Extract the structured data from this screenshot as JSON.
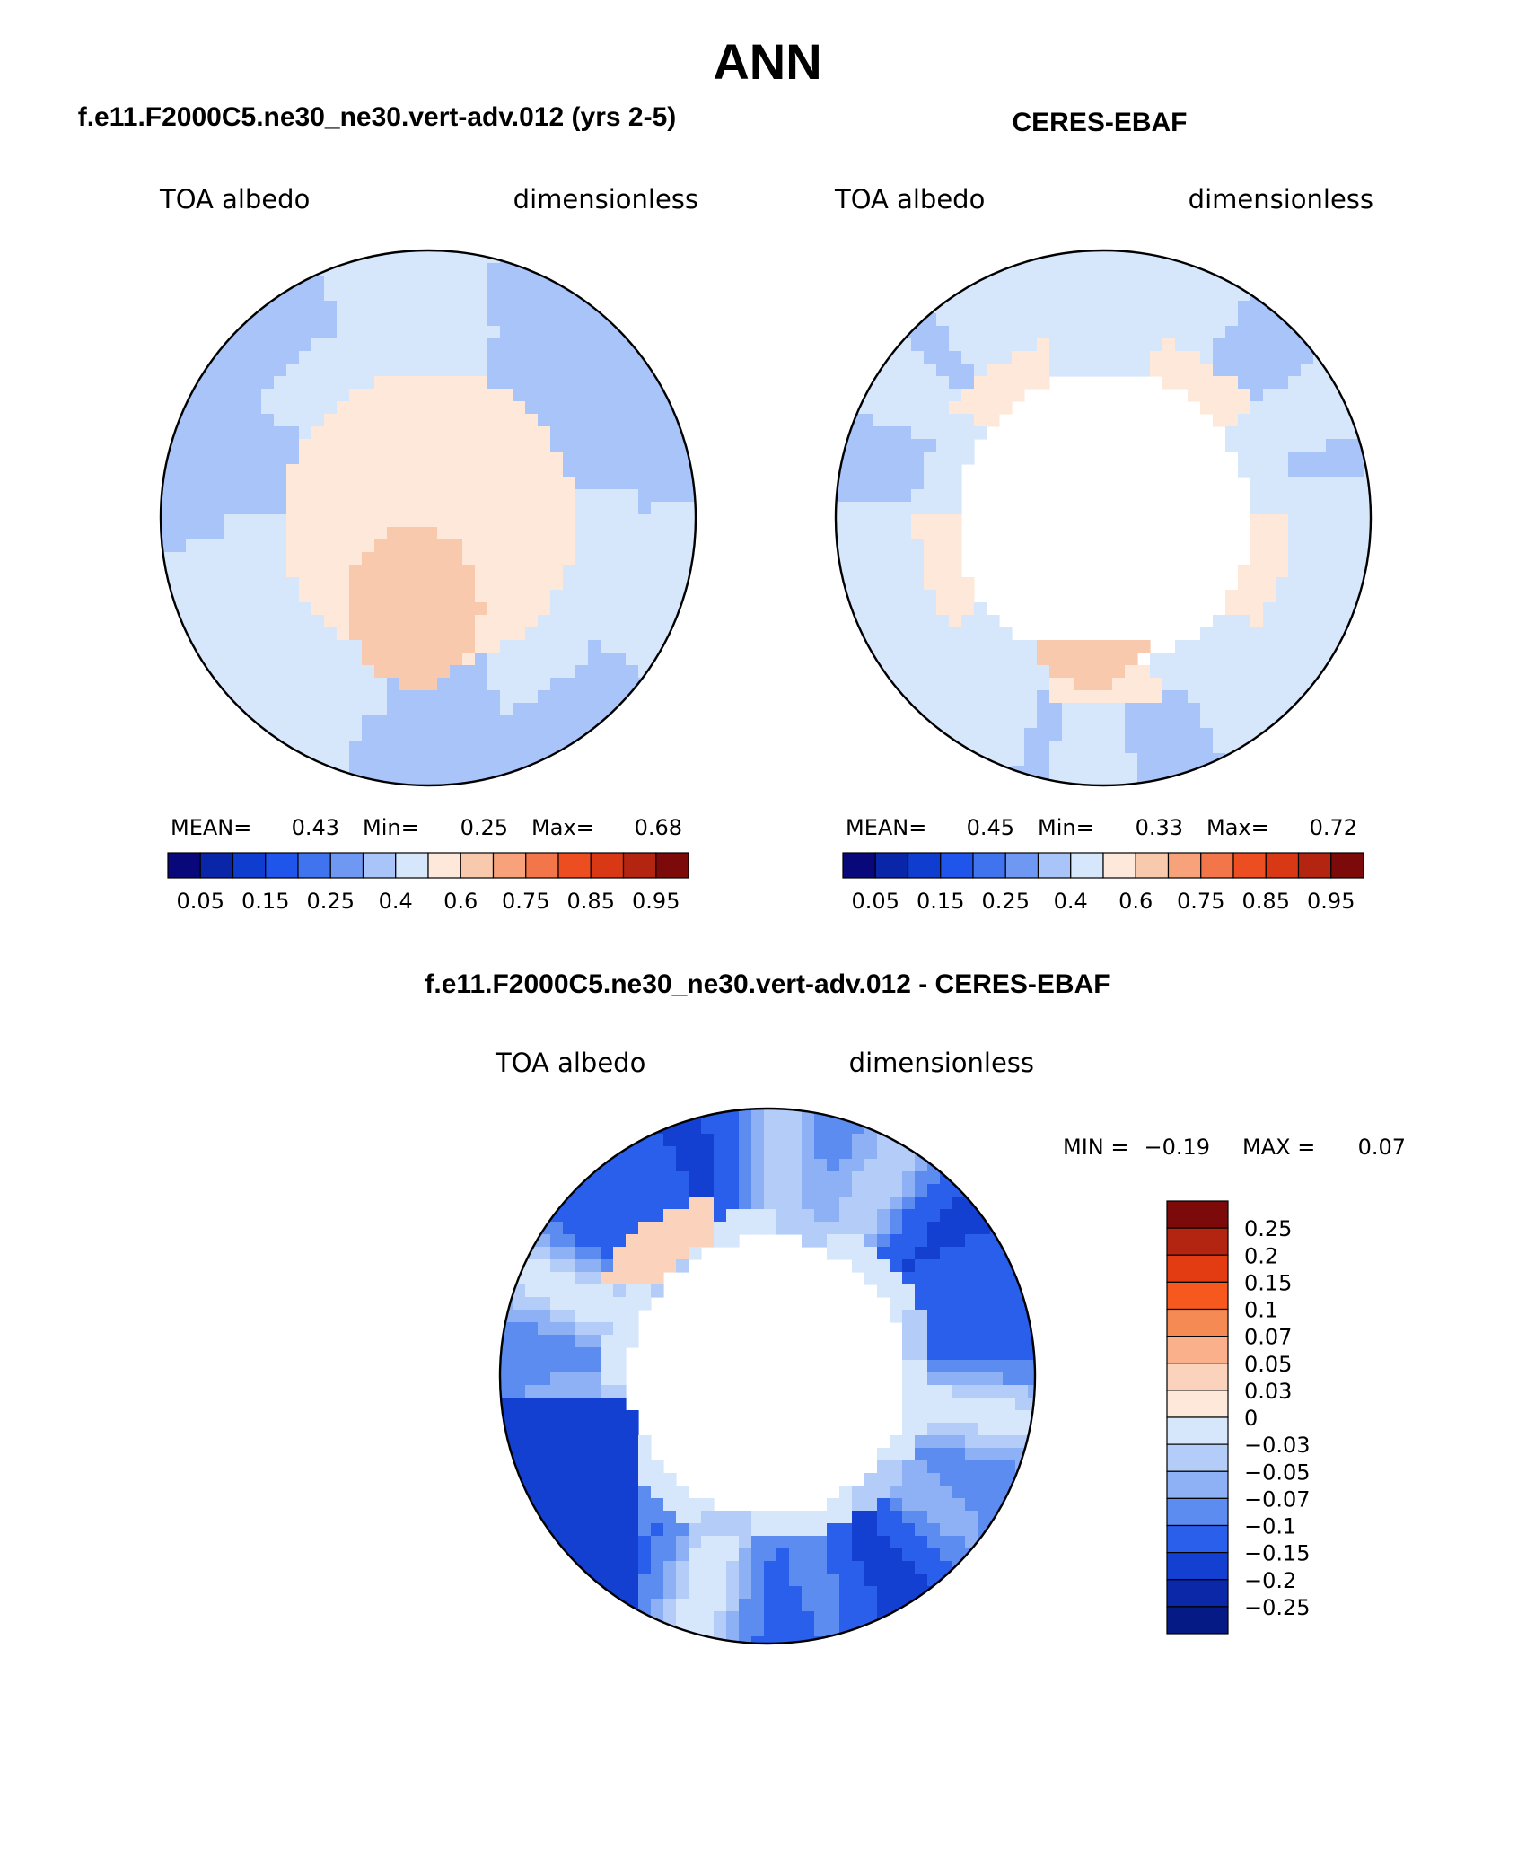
{
  "title": "ANN",
  "panels": [
    {
      "heading": "f.e11.F2000C5.ne30_ne30.vert-adv.012 (yrs 2-5)",
      "variable": "TOA albedo",
      "units": "dimensionless",
      "stats": {
        "mean_label": "MEAN=",
        "mean": "0.43",
        "min_label": "Min=",
        "min": "0.25",
        "max_label": "Max=",
        "max": "0.68"
      },
      "field": "model",
      "colorbar_ticks": [
        "0.05",
        "0.15",
        "0.25",
        "0.4",
        "0.6",
        "0.75",
        "0.85",
        "0.95"
      ]
    },
    {
      "heading": "CERES-EBAF",
      "variable": "TOA albedo",
      "units": "dimensionless",
      "stats": {
        "mean_label": "MEAN=",
        "mean": "0.45",
        "min_label": "Min=",
        "min": "0.33",
        "max_label": "Max=",
        "max": "0.72"
      },
      "field": "obs",
      "colorbar_ticks": [
        "0.05",
        "0.15",
        "0.25",
        "0.4",
        "0.6",
        "0.75",
        "0.85",
        "0.95"
      ]
    }
  ],
  "diff": {
    "heading": "f.e11.F2000C5.ne30_ne30.vert-adv.012 - CERES-EBAF",
    "variable": "TOA albedo",
    "units": "dimensionless",
    "stats": {
      "min_label": "MIN =",
      "min": "−0.19",
      "max_label": "MAX =",
      "max": "0.07"
    },
    "colorbar_labels": [
      "0.25",
      "0.2",
      "0.15",
      "0.1",
      "0.07",
      "0.05",
      "0.03",
      "0",
      "−0.03",
      "−0.05",
      "−0.07",
      "−0.1",
      "−0.15",
      "−0.2",
      "−0.25"
    ]
  },
  "colors": {
    "abs_palette": [
      "#08087a",
      "#0a26a8",
      "#0f3dd0",
      "#1f55ea",
      "#3f74ee",
      "#6f98f2",
      "#a8c4f8",
      "#d6e7fc",
      "#fde8da",
      "#f9c9ad",
      "#f7a27a",
      "#f3764b",
      "#ec4e22",
      "#d93815",
      "#b32510",
      "#7d0a0a"
    ],
    "diff_palette": [
      "#7d0a0a",
      "#b32510",
      "#e33c12",
      "#f7581e",
      "#f58a55",
      "#f9b08b",
      "#fbd2bb",
      "#fde8da",
      "#d6e7fc",
      "#b4cdf8",
      "#8db1f4",
      "#5d8cf0",
      "#2a5fec",
      "#1440d2",
      "#0a28a8",
      "#061a86"
    ],
    "no_data": "#ffffff"
  }
}
